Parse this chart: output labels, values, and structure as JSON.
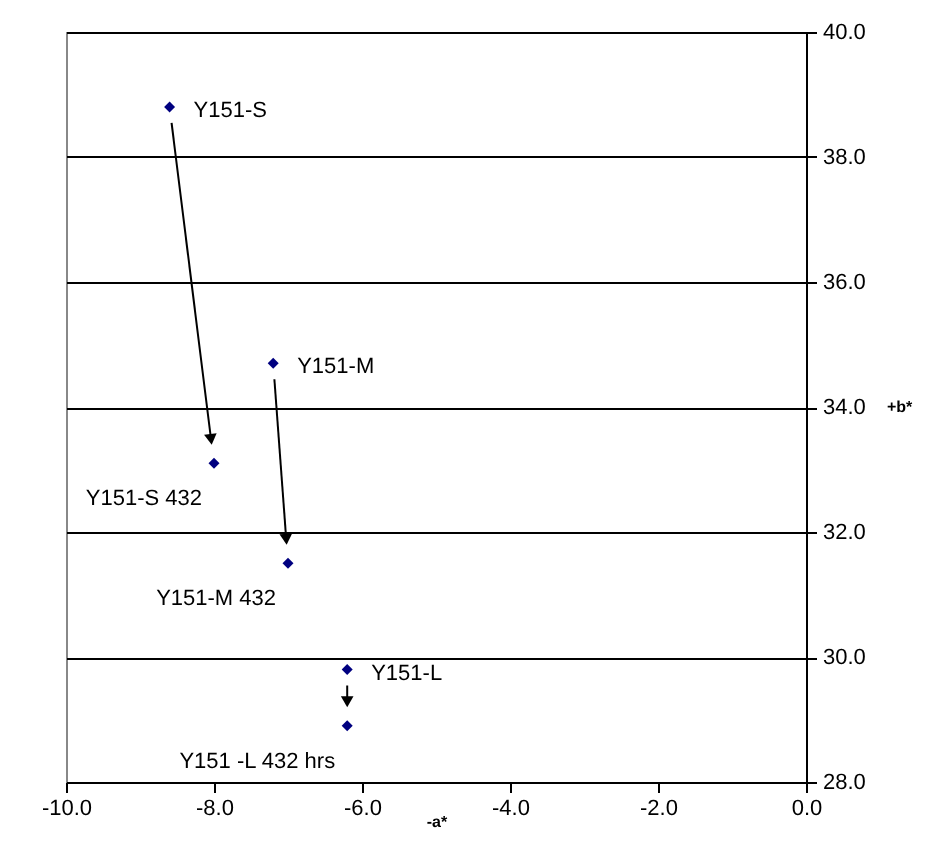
{
  "chart_data": {
    "type": "scatter",
    "marker": "diamond",
    "color": "#000080",
    "x": [
      -8.6,
      -8.0,
      -7.2,
      -7.0,
      -6.2,
      -6.2
    ],
    "values": [
      38.8,
      33.1,
      34.7,
      31.5,
      29.8,
      28.9
    ],
    "xlabel": "-a*",
    "ylabel": "+b*",
    "xlim": [
      -10,
      0
    ],
    "ylim": [
      28,
      40
    ],
    "xticks": [
      {
        "value": -10,
        "label": "-10.0"
      },
      {
        "value": -8,
        "label": "-8.0"
      },
      {
        "value": -6,
        "label": "-6.0"
      },
      {
        "value": -4,
        "label": "-4.0"
      },
      {
        "value": -2,
        "label": "-2.0"
      },
      {
        "value": 0,
        "label": "0.0"
      }
    ],
    "yticks": [
      {
        "value": 28,
        "label": "28.0"
      },
      {
        "value": 30,
        "label": "30.0"
      },
      {
        "value": 32,
        "label": "32.0"
      },
      {
        "value": 34,
        "label": "34.0"
      },
      {
        "value": 36,
        "label": "36.0"
      },
      {
        "value": 38,
        "label": "38.0"
      },
      {
        "value": 40,
        "label": "40.0"
      }
    ],
    "grid": "y",
    "annotations": [
      {
        "text": "Y151-S",
        "x": -8.6,
        "y": 38.8
      },
      {
        "text": "Y151-S 432",
        "x": -8.0,
        "y": 33.1
      },
      {
        "text": "Y151-M",
        "x": -7.2,
        "y": 34.7
      },
      {
        "text": "Y151-M 432",
        "x": -7.0,
        "y": 31.5
      },
      {
        "text": "Y151-L",
        "x": -6.2,
        "y": 29.8
      },
      {
        "text": "Y151 -L 432 hrs",
        "x": -6.2,
        "y": 28.9
      }
    ]
  }
}
